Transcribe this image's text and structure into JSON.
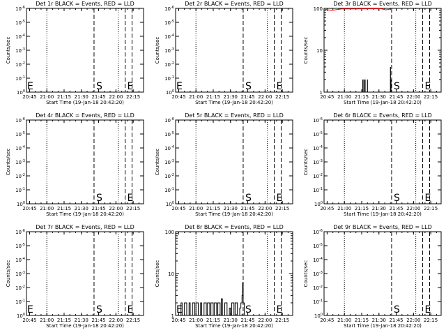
{
  "colors": {
    "background": "#ffffff",
    "axes": "#000000",
    "events": "#000000",
    "lld": "#ff0000"
  },
  "chart_data": [
    {
      "type": "line",
      "title": "Det 1r BLACK = Events, RED = LLD",
      "xlabel": "Start Time (19-Jan-18 20:42:20)",
      "ylabel": "Counts/sec",
      "x_ticks": [
        "20:45",
        "21:00",
        "21:15",
        "21:30",
        "21:45",
        "22:00",
        "22:15"
      ],
      "xlim": [
        "20:42:20",
        "22:24"
      ],
      "y_scale": "log",
      "y_ticks": [
        "10^0",
        "10^-1",
        "10^-2",
        "10^-3",
        "10^-4",
        "10^-5",
        "10^-6"
      ],
      "ylim": [
        1,
        1e-06
      ],
      "markers": [
        {
          "label": "",
          "time": "21:00",
          "style": "dotted"
        },
        {
          "label": "S",
          "time": "21:41",
          "style": "dashed"
        },
        {
          "label": "E",
          "time": "22:08",
          "style": "dashed"
        },
        {
          "label": "",
          "time": "22:14",
          "style": "dashed"
        },
        {
          "label": "",
          "time": "22:02",
          "style": "dotted"
        }
      ],
      "corner_label": "E",
      "series": []
    },
    {
      "type": "line",
      "title": "Det 2r BLACK = Events, RED = LLD",
      "xlabel": "Start Time (19-Jan-18 20:42:20)",
      "ylabel": "Counts/sec",
      "x_ticks": [
        "20:45",
        "21:00",
        "21:15",
        "21:30",
        "21:45",
        "22:00",
        "22:15"
      ],
      "xlim": [
        "20:42:20",
        "22:24"
      ],
      "y_scale": "log",
      "y_ticks": [
        "10^0",
        "10^-1",
        "10^-2",
        "10^-3",
        "10^-4",
        "10^-5",
        "10^-6"
      ],
      "ylim": [
        1,
        1e-06
      ],
      "markers": [
        {
          "label": "",
          "time": "21:00",
          "style": "dotted"
        },
        {
          "label": "S",
          "time": "21:41",
          "style": "dashed"
        },
        {
          "label": "E",
          "time": "22:08",
          "style": "dashed"
        },
        {
          "label": "",
          "time": "22:14",
          "style": "dashed"
        },
        {
          "label": "",
          "time": "22:02",
          "style": "dotted"
        }
      ],
      "corner_label": "E",
      "series": []
    },
    {
      "type": "line",
      "title": "Det 3r BLACK = Events, RED = LLD",
      "xlabel": "Start Time (19-Jan-18 20:42:20)",
      "ylabel": "Counts/sec",
      "x_ticks": [
        "20:45",
        "21:00",
        "21:15",
        "21:30",
        "21:45",
        "22:00",
        "22:15"
      ],
      "xlim": [
        "20:42:20",
        "22:24"
      ],
      "y_scale": "log",
      "y_ticks": [
        "1",
        "10",
        "100"
      ],
      "ylim": [
        1,
        100
      ],
      "markers": [
        {
          "label": "",
          "time": "21:00",
          "style": "dotted"
        },
        {
          "label": "S",
          "time": "21:41",
          "style": "dashed"
        },
        {
          "label": "E",
          "time": "22:08",
          "style": "dashed"
        },
        {
          "label": "",
          "time": "22:14",
          "style": "dashed"
        },
        {
          "label": "",
          "time": "22:02",
          "style": "dotted"
        }
      ],
      "corner_label": "",
      "series": [
        {
          "color": "#ff0000",
          "style": "line",
          "points": [
            [
              "20:43",
              95
            ],
            [
              "20:46",
              92
            ],
            [
              "20:49",
              90
            ],
            [
              "20:52",
              92
            ],
            [
              "20:55",
              95
            ],
            [
              "20:58",
              97
            ],
            [
              "21:32",
              98
            ],
            [
              "21:34",
              95
            ],
            [
              "21:36",
              92
            ],
            [
              "21:38",
              94
            ],
            [
              "21:40",
              97
            ]
          ]
        },
        {
          "color": "#000000",
          "style": "spikes",
          "base": 1,
          "points": [
            [
              "21:16",
              2
            ],
            [
              "21:17",
              2
            ],
            [
              "21:18",
              2
            ],
            [
              "21:20",
              2
            ],
            [
              "21:40",
              4
            ],
            [
              "21:40.5",
              2
            ]
          ]
        }
      ]
    },
    {
      "type": "line",
      "title": "Det 4r BLACK = Events, RED = LLD",
      "xlabel": "Start Time (19-Jan-18 20:42:20)",
      "ylabel": "Counts/sec",
      "x_ticks": [
        "20:45",
        "21:00",
        "21:15",
        "21:30",
        "21:45",
        "22:00",
        "22:15"
      ],
      "xlim": [
        "20:42:20",
        "22:24"
      ],
      "y_scale": "log",
      "y_ticks": [
        "10^0",
        "10^-1",
        "10^-2",
        "10^-3",
        "10^-4",
        "10^-5",
        "10^-6"
      ],
      "ylim": [
        1,
        1e-06
      ],
      "markers": [
        {
          "label": "",
          "time": "21:00",
          "style": "dotted"
        },
        {
          "label": "S",
          "time": "21:41",
          "style": "dashed"
        },
        {
          "label": "E",
          "time": "22:08",
          "style": "dashed"
        },
        {
          "label": "",
          "time": "22:14",
          "style": "dashed"
        },
        {
          "label": "",
          "time": "22:02",
          "style": "dotted"
        }
      ],
      "corner_label": "",
      "series": []
    },
    {
      "type": "line",
      "title": "Det 5r BLACK = Events, RED = LLD",
      "xlabel": "Start Time (19-Jan-18 20:42:20)",
      "ylabel": "Counts/sec",
      "x_ticks": [
        "20:45",
        "21:00",
        "21:15",
        "21:30",
        "21:45",
        "22:00",
        "22:15"
      ],
      "xlim": [
        "20:42:20",
        "22:24"
      ],
      "y_scale": "log",
      "y_ticks": [
        "10^0",
        "10^-1",
        "10^-2",
        "10^-3",
        "10^-4",
        "10^-5",
        "10^-6"
      ],
      "ylim": [
        1,
        1e-06
      ],
      "markers": [
        {
          "label": "",
          "time": "21:00",
          "style": "dotted"
        },
        {
          "label": "S",
          "time": "21:41",
          "style": "dashed"
        },
        {
          "label": "E",
          "time": "22:08",
          "style": "dashed"
        },
        {
          "label": "",
          "time": "22:14",
          "style": "dashed"
        },
        {
          "label": "",
          "time": "22:02",
          "style": "dotted"
        }
      ],
      "corner_label": "",
      "series": []
    },
    {
      "type": "line",
      "title": "Det 6r BLACK = Events, RED = LLD",
      "xlabel": "Start Time (19-Jan-18 20:42:20)",
      "ylabel": "Counts/sec",
      "x_ticks": [
        "20:45",
        "21:00",
        "21:15",
        "21:30",
        "21:45",
        "22:00",
        "22:15"
      ],
      "xlim": [
        "20:42:20",
        "22:24"
      ],
      "y_scale": "log",
      "y_ticks": [
        "10^0",
        "10^-1",
        "10^-2",
        "10^-3",
        "10^-4",
        "10^-5",
        "10^-6"
      ],
      "ylim": [
        1,
        1e-06
      ],
      "markers": [
        {
          "label": "",
          "time": "21:00",
          "style": "dotted"
        },
        {
          "label": "S",
          "time": "21:41",
          "style": "dashed"
        },
        {
          "label": "E",
          "time": "22:08",
          "style": "dashed"
        },
        {
          "label": "",
          "time": "22:14",
          "style": "dashed"
        },
        {
          "label": "",
          "time": "22:02",
          "style": "dotted"
        }
      ],
      "corner_label": "",
      "series": []
    },
    {
      "type": "line",
      "title": "Det 7r BLACK = Events, RED = LLD",
      "xlabel": "Start Time (19-Jan-18 20:42:20)",
      "ylabel": "Counts/sec",
      "x_ticks": [
        "20:45",
        "21:00",
        "21:15",
        "21:30",
        "21:45",
        "22:00",
        "22:15"
      ],
      "xlim": [
        "20:42:20",
        "22:24"
      ],
      "y_scale": "log",
      "y_ticks": [
        "10^0",
        "10^-1",
        "10^-2",
        "10^-3",
        "10^-4",
        "10^-5",
        "10^-6"
      ],
      "ylim": [
        1,
        1e-06
      ],
      "markers": [
        {
          "label": "",
          "time": "21:00",
          "style": "dotted"
        },
        {
          "label": "S",
          "time": "21:41",
          "style": "dashed"
        },
        {
          "label": "E",
          "time": "22:08",
          "style": "dashed"
        },
        {
          "label": "",
          "time": "22:14",
          "style": "dashed"
        },
        {
          "label": "",
          "time": "22:02",
          "style": "dotted"
        }
      ],
      "corner_label": "E",
      "series": []
    },
    {
      "type": "line",
      "title": "Det 8r BLACK = Events, RED = LLD",
      "xlabel": "Start Time (19-Jan-18 20:42:20)",
      "ylabel": "Counts/sec",
      "x_ticks": [
        "20:45",
        "21:00",
        "21:15",
        "21:30",
        "21:45",
        "22:00",
        "22:15"
      ],
      "xlim": [
        "20:42:20",
        "22:24"
      ],
      "y_scale": "log",
      "y_ticks": [
        "1",
        "10",
        "100"
      ],
      "ylim": [
        1,
        100
      ],
      "markers": [
        {
          "label": "",
          "time": "21:00",
          "style": "dotted"
        },
        {
          "label": "S",
          "time": "21:41",
          "style": "dashed"
        },
        {
          "label": "E",
          "time": "22:08",
          "style": "dashed"
        },
        {
          "label": "",
          "time": "22:14",
          "style": "dashed"
        },
        {
          "label": "",
          "time": "22:02",
          "style": "dotted"
        }
      ],
      "corner_label": "E",
      "series": [
        {
          "color": "#000000",
          "style": "step",
          "base": 1,
          "points": [
            [
              "20:45",
              1
            ],
            [
              "20:47",
              2
            ],
            [
              "20:48",
              1
            ],
            [
              "20:50",
              2
            ],
            [
              "20:52",
              1
            ],
            [
              "20:54",
              2
            ],
            [
              "20:55",
              1
            ],
            [
              "20:57",
              2
            ],
            [
              "20:59",
              1
            ],
            [
              "21:00",
              2
            ],
            [
              "21:02",
              1
            ],
            [
              "21:04",
              2
            ],
            [
              "21:05",
              1
            ],
            [
              "21:07",
              2
            ],
            [
              "21:09",
              1
            ],
            [
              "21:10",
              2
            ],
            [
              "21:12",
              1
            ],
            [
              "21:13",
              2
            ],
            [
              "21:15",
              1
            ],
            [
              "21:16",
              2
            ],
            [
              "21:18",
              1
            ],
            [
              "21:19",
              2
            ],
            [
              "21:21",
              1
            ],
            [
              "21:22",
              2.5
            ],
            [
              "21:23",
              1
            ],
            [
              "21:25",
              2
            ],
            [
              "21:27",
              1
            ],
            [
              "21:29",
              1.5
            ],
            [
              "21:30",
              1
            ],
            [
              "21:31",
              2
            ],
            [
              "21:33",
              1
            ],
            [
              "21:34",
              2
            ],
            [
              "21:36",
              1
            ],
            [
              "21:38",
              1.5
            ],
            [
              "21:39",
              2
            ],
            [
              "21:40",
              3
            ],
            [
              "21:40.5",
              6
            ],
            [
              "21:41",
              2
            ],
            [
              "21:42",
              1
            ]
          ]
        }
      ]
    },
    {
      "type": "line",
      "title": "Det 9r BLACK = Events, RED = LLD",
      "xlabel": "Start Time (19-Jan-18 20:42:20)",
      "ylabel": "Counts/sec",
      "x_ticks": [
        "20:45",
        "21:00",
        "21:15",
        "21:30",
        "21:45",
        "22:00",
        "22:15"
      ],
      "xlim": [
        "20:42:20",
        "22:24"
      ],
      "y_scale": "log",
      "y_ticks": [
        "10^0",
        "10^-1",
        "10^-2",
        "10^-3",
        "10^-4",
        "10^-5",
        "10^-6"
      ],
      "ylim": [
        1,
        1e-06
      ],
      "markers": [
        {
          "label": "",
          "time": "21:00",
          "style": "dotted"
        },
        {
          "label": "S",
          "time": "21:41",
          "style": "dashed"
        },
        {
          "label": "E",
          "time": "22:08",
          "style": "dashed"
        },
        {
          "label": "",
          "time": "22:14",
          "style": "dashed"
        },
        {
          "label": "",
          "time": "22:02",
          "style": "dotted"
        }
      ],
      "corner_label": "",
      "series": []
    }
  ]
}
